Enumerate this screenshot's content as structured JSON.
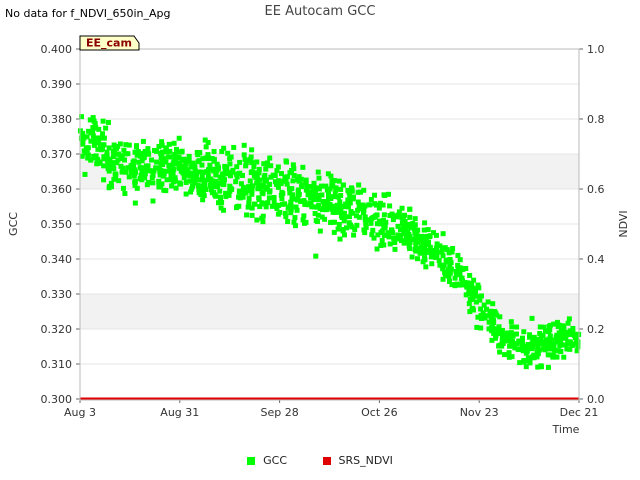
{
  "header": {
    "title": "EE Autocam GCC",
    "nodata_note": "No data for f_NDVI_650in_Apg"
  },
  "colors": {
    "gcc": "#00ff00",
    "srs_ndvi": "#e00000",
    "band": "#f2f2f2",
    "badge_bg": "#ffffc8"
  },
  "chart_data": {
    "type": "scatter",
    "badge": "EE_cam",
    "xlabel": "Time",
    "ylabel_left": "GCC",
    "ylabel_right": "NDVI",
    "x_range": [
      "Aug 3",
      "Dec 21"
    ],
    "xtick_labels": [
      "Aug 3",
      "Aug 31",
      "Sep 28",
      "Oct 26",
      "Nov 23",
      "Dec 21"
    ],
    "ylim_left": [
      0.3,
      0.4
    ],
    "ylim_right": [
      0.0,
      1.0
    ],
    "ytick_labels_left": [
      "0.300",
      "0.310",
      "0.320",
      "0.330",
      "0.340",
      "0.350",
      "0.360",
      "0.370",
      "0.380",
      "0.390",
      "0.400"
    ],
    "ytick_labels_right": [
      "0.0",
      "0.2",
      "0.4",
      "0.6",
      "0.8",
      "1.0"
    ],
    "series": [
      {
        "name": "GCC",
        "axis": "left",
        "x_days_since_aug3": [
          0,
          4,
          8,
          12,
          16,
          20,
          24,
          28,
          32,
          36,
          40,
          44,
          48,
          52,
          56,
          60,
          64,
          68,
          72,
          76,
          80,
          84,
          88,
          92,
          96,
          100,
          104,
          108,
          112,
          116,
          120,
          124,
          128,
          132,
          136,
          140
        ],
        "upper_envelope": [
          0.381,
          0.379,
          0.377,
          0.375,
          0.374,
          0.374,
          0.374,
          0.373,
          0.372,
          0.371,
          0.37,
          0.37,
          0.369,
          0.369,
          0.368,
          0.366,
          0.365,
          0.363,
          0.362,
          0.36,
          0.359,
          0.357,
          0.356,
          0.353,
          0.349,
          0.345,
          0.341,
          0.337,
          0.332,
          0.326,
          0.321,
          0.319,
          0.32,
          0.321,
          0.322,
          0.321
        ],
        "lower_envelope": [
          0.369,
          0.366,
          0.362,
          0.359,
          0.358,
          0.359,
          0.361,
          0.36,
          0.358,
          0.356,
          0.355,
          0.354,
          0.353,
          0.353,
          0.352,
          0.351,
          0.35,
          0.349,
          0.348,
          0.347,
          0.346,
          0.345,
          0.344,
          0.342,
          0.34,
          0.338,
          0.334,
          0.33,
          0.323,
          0.316,
          0.311,
          0.31,
          0.311,
          0.312,
          0.313,
          0.314
        ]
      },
      {
        "name": "SRS_NDVI",
        "axis": "right",
        "x_days_since_aug3": [
          0,
          140
        ],
        "values": [
          0.0,
          0.0
        ]
      }
    ],
    "legend": [
      "GCC",
      "SRS_NDVI"
    ],
    "legend_position": "bottom-center",
    "grid": "horizontal bands"
  }
}
